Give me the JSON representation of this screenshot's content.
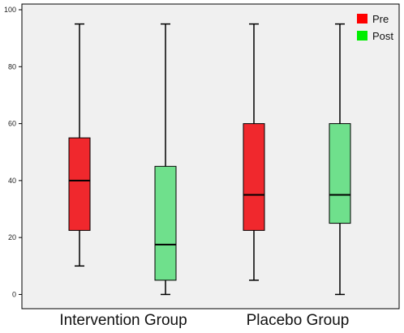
{
  "chart_data": {
    "type": "boxplot",
    "categories": [
      "Intervention Group",
      "Placebo Group"
    ],
    "series": [
      {
        "name": "Pre",
        "color": "#f0282d",
        "boxes": [
          {
            "min": 10,
            "q1": 22.5,
            "median": 40,
            "q3": 55,
            "max": 95
          },
          {
            "min": 5,
            "q1": 22.5,
            "median": 35,
            "q3": 60,
            "max": 95
          }
        ]
      },
      {
        "name": "Post",
        "color": "#6fe08c",
        "boxes": [
          {
            "min": 0,
            "q1": 5,
            "median": 17.5,
            "q3": 45,
            "max": 95
          },
          {
            "min": 0,
            "q1": 25,
            "median": 35,
            "q3": 60,
            "max": 95
          }
        ]
      }
    ],
    "legend": {
      "position": "top-right",
      "items": [
        {
          "label": "Pre",
          "color": "#ff0000"
        },
        {
          "label": "Post",
          "color": "#00ee00"
        }
      ]
    },
    "yticks": [
      "0",
      "20",
      "40",
      "60",
      "80",
      "100"
    ],
    "ylim": [
      -5,
      102
    ],
    "grid": false,
    "plot_background": "#f0f0f0",
    "title": "",
    "xlabel": "",
    "ylabel": ""
  }
}
